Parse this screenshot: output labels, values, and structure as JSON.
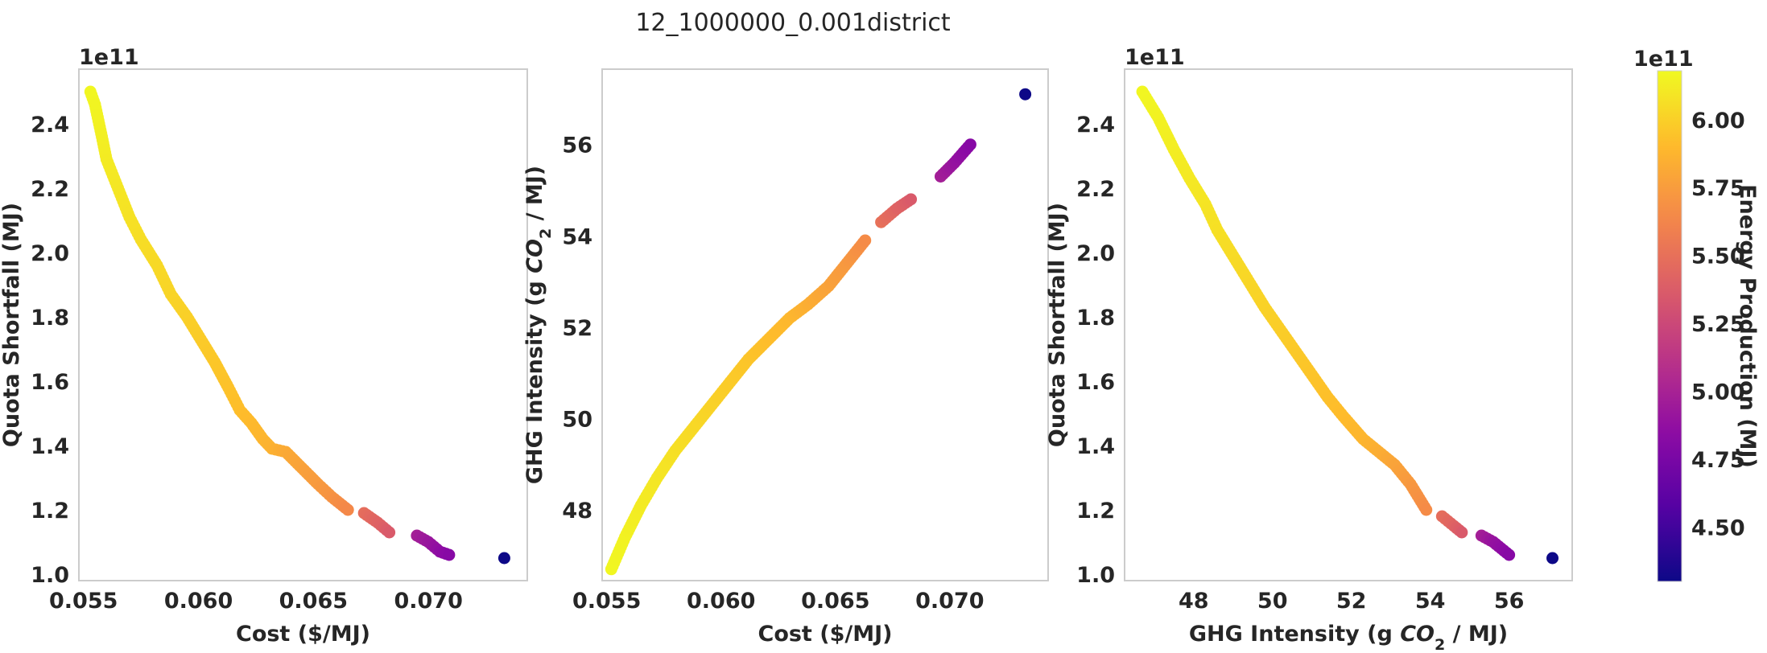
{
  "figure_title": "12_1000000_0.001district",
  "colormap": "plasma",
  "chart_data": [
    {
      "type": "scatter",
      "title": "",
      "xlabel": "Cost ($/MJ)",
      "ylabel": "Quota Shortfall (MJ)",
      "xlim": [
        0.0548,
        0.0743
      ],
      "ylim": [
        0.98,
        2.57
      ],
      "xticks": [
        0.055,
        0.06,
        0.065,
        0.07
      ],
      "xtick_labels": [
        "0.055",
        "0.060",
        "0.065",
        "0.070"
      ],
      "yticks": [
        1.0,
        1.2,
        1.4,
        1.6,
        1.8,
        2.0,
        2.2,
        2.4
      ],
      "ytick_labels": [
        "1.0",
        "1.2",
        "1.4",
        "1.6",
        "1.8",
        "2.0",
        "2.2",
        "2.4"
      ],
      "y_offset_label": "1e11",
      "grid": false,
      "color_by": "Energy Production (MJ)",
      "points": [
        {
          "x": 0.0553,
          "y": 2.5,
          "c": 6.17
        },
        {
          "x": 0.0555,
          "y": 2.46,
          "c": 6.16
        },
        {
          "x": 0.0558,
          "y": 2.36,
          "c": 6.14
        },
        {
          "x": 0.056,
          "y": 2.29,
          "c": 6.12
        },
        {
          "x": 0.0565,
          "y": 2.2,
          "c": 6.1
        },
        {
          "x": 0.057,
          "y": 2.11,
          "c": 6.08
        },
        {
          "x": 0.0575,
          "y": 2.04,
          "c": 6.06
        },
        {
          "x": 0.0582,
          "y": 1.96,
          "c": 6.04
        },
        {
          "x": 0.0588,
          "y": 1.87,
          "c": 6.02
        },
        {
          "x": 0.0595,
          "y": 1.8,
          "c": 6.0
        },
        {
          "x": 0.0601,
          "y": 1.73,
          "c": 5.98
        },
        {
          "x": 0.0607,
          "y": 1.66,
          "c": 5.96
        },
        {
          "x": 0.0613,
          "y": 1.58,
          "c": 5.94
        },
        {
          "x": 0.0618,
          "y": 1.51,
          "c": 5.92
        },
        {
          "x": 0.0623,
          "y": 1.47,
          "c": 5.9
        },
        {
          "x": 0.0628,
          "y": 1.42,
          "c": 5.88
        },
        {
          "x": 0.0632,
          "y": 1.39,
          "c": 5.86
        },
        {
          "x": 0.0638,
          "y": 1.38,
          "c": 5.82
        },
        {
          "x": 0.0645,
          "y": 1.33,
          "c": 5.78
        },
        {
          "x": 0.0652,
          "y": 1.28,
          "c": 5.74
        },
        {
          "x": 0.0658,
          "y": 1.24,
          "c": 5.7
        },
        {
          "x": 0.0665,
          "y": 1.2,
          "c": 5.64
        },
        {
          "x": 0.0672,
          "y": 1.19,
          "c": 5.48
        },
        {
          "x": 0.0678,
          "y": 1.16,
          "c": 5.42
        },
        {
          "x": 0.0683,
          "y": 1.13,
          "c": 5.36
        },
        {
          "x": 0.0695,
          "y": 1.12,
          "c": 4.98
        },
        {
          "x": 0.07,
          "y": 1.1,
          "c": 4.92
        },
        {
          "x": 0.0705,
          "y": 1.07,
          "c": 4.86
        },
        {
          "x": 0.0709,
          "y": 1.06,
          "c": 4.82
        },
        {
          "x": 0.0733,
          "y": 1.05,
          "c": 4.3
        }
      ]
    },
    {
      "type": "scatter",
      "title": "",
      "xlabel": "Cost ($/MJ)",
      "ylabel": "GHG Intensity (g CO2 / MJ)",
      "xlim": [
        0.0548,
        0.0743
      ],
      "ylim": [
        46.45,
        57.65
      ],
      "xticks": [
        0.055,
        0.06,
        0.065,
        0.07
      ],
      "xtick_labels": [
        "0.055",
        "0.060",
        "0.065",
        "0.070"
      ],
      "yticks": [
        48,
        50,
        52,
        54,
        56
      ],
      "ytick_labels": [
        "48",
        "50",
        "52",
        "54",
        "56"
      ],
      "y_offset_label": "",
      "grid": false,
      "color_by": "Energy Production (MJ)",
      "points": [
        {
          "x": 0.0552,
          "y": 46.7,
          "c": 6.17
        },
        {
          "x": 0.0558,
          "y": 47.4,
          "c": 6.15
        },
        {
          "x": 0.0565,
          "y": 48.1,
          "c": 6.12
        },
        {
          "x": 0.0572,
          "y": 48.7,
          "c": 6.1
        },
        {
          "x": 0.058,
          "y": 49.3,
          "c": 6.07
        },
        {
          "x": 0.0588,
          "y": 49.8,
          "c": 6.04
        },
        {
          "x": 0.0596,
          "y": 50.3,
          "c": 6.01
        },
        {
          "x": 0.0604,
          "y": 50.8,
          "c": 5.98
        },
        {
          "x": 0.0612,
          "y": 51.3,
          "c": 5.95
        },
        {
          "x": 0.062,
          "y": 51.7,
          "c": 5.92
        },
        {
          "x": 0.063,
          "y": 52.2,
          "c": 5.89
        },
        {
          "x": 0.0638,
          "y": 52.5,
          "c": 5.84
        },
        {
          "x": 0.0647,
          "y": 52.9,
          "c": 5.78
        },
        {
          "x": 0.0655,
          "y": 53.4,
          "c": 5.73
        },
        {
          "x": 0.0663,
          "y": 53.9,
          "c": 5.66
        },
        {
          "x": 0.067,
          "y": 54.3,
          "c": 5.5
        },
        {
          "x": 0.0677,
          "y": 54.6,
          "c": 5.42
        },
        {
          "x": 0.0683,
          "y": 54.8,
          "c": 5.36
        },
        {
          "x": 0.0696,
          "y": 55.3,
          "c": 4.98
        },
        {
          "x": 0.0702,
          "y": 55.6,
          "c": 4.9
        },
        {
          "x": 0.0709,
          "y": 56.0,
          "c": 4.82
        },
        {
          "x": 0.0733,
          "y": 57.1,
          "c": 4.3
        }
      ]
    },
    {
      "type": "scatter",
      "title": "",
      "xlabel": "GHG Intensity (g CO2 / MJ)",
      "ylabel": "Quota Shortfall (MJ)",
      "xlim": [
        46.25,
        57.6
      ],
      "ylim": [
        0.98,
        2.57
      ],
      "xticks": [
        48,
        50,
        52,
        54,
        56
      ],
      "xtick_labels": [
        "48",
        "50",
        "52",
        "54",
        "56"
      ],
      "yticks": [
        1.0,
        1.2,
        1.4,
        1.6,
        1.8,
        2.0,
        2.2,
        2.4
      ],
      "ytick_labels": [
        "1.0",
        "1.2",
        "1.4",
        "1.6",
        "1.8",
        "2.0",
        "2.2",
        "2.4"
      ],
      "y_offset_label": "1e11",
      "grid": false,
      "color_by": "Energy Production (MJ)",
      "points": [
        {
          "x": 46.7,
          "y": 2.5,
          "c": 6.17
        },
        {
          "x": 47.1,
          "y": 2.42,
          "c": 6.15
        },
        {
          "x": 47.5,
          "y": 2.32,
          "c": 6.13
        },
        {
          "x": 47.9,
          "y": 2.23,
          "c": 6.11
        },
        {
          "x": 48.3,
          "y": 2.15,
          "c": 6.09
        },
        {
          "x": 48.6,
          "y": 2.07,
          "c": 6.07
        },
        {
          "x": 49.0,
          "y": 1.99,
          "c": 6.05
        },
        {
          "x": 49.4,
          "y": 1.91,
          "c": 6.03
        },
        {
          "x": 49.8,
          "y": 1.83,
          "c": 6.01
        },
        {
          "x": 50.2,
          "y": 1.76,
          "c": 5.99
        },
        {
          "x": 50.6,
          "y": 1.69,
          "c": 5.97
        },
        {
          "x": 51.0,
          "y": 1.62,
          "c": 5.95
        },
        {
          "x": 51.4,
          "y": 1.55,
          "c": 5.93
        },
        {
          "x": 51.8,
          "y": 1.49,
          "c": 5.91
        },
        {
          "x": 52.3,
          "y": 1.42,
          "c": 5.88
        },
        {
          "x": 52.7,
          "y": 1.38,
          "c": 5.84
        },
        {
          "x": 53.1,
          "y": 1.34,
          "c": 5.79
        },
        {
          "x": 53.5,
          "y": 1.28,
          "c": 5.73
        },
        {
          "x": 53.9,
          "y": 1.2,
          "c": 5.66
        },
        {
          "x": 54.3,
          "y": 1.18,
          "c": 5.48
        },
        {
          "x": 54.6,
          "y": 1.15,
          "c": 5.42
        },
        {
          "x": 54.8,
          "y": 1.13,
          "c": 5.36
        },
        {
          "x": 55.3,
          "y": 1.12,
          "c": 4.98
        },
        {
          "x": 55.6,
          "y": 1.1,
          "c": 4.9
        },
        {
          "x": 56.0,
          "y": 1.06,
          "c": 4.82
        },
        {
          "x": 57.1,
          "y": 1.05,
          "c": 4.3
        }
      ]
    }
  ],
  "colorbar": {
    "label": "Energy Production (MJ)",
    "offset_label": "1e11",
    "range": [
      4.3,
      6.18
    ],
    "ticks": [
      4.5,
      4.75,
      5.0,
      5.25,
      5.5,
      5.75,
      6.0
    ],
    "tick_labels": [
      "4.50",
      "4.75",
      "5.00",
      "5.25",
      "5.50",
      "5.75",
      "6.00"
    ]
  }
}
